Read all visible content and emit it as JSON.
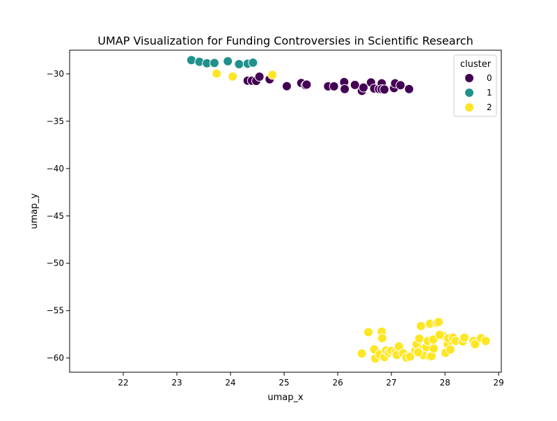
{
  "chart_data": {
    "type": "scatter",
    "title": "UMAP Visualization for Funding Controversies in Scientific Research",
    "xlabel": "umap_x",
    "ylabel": "umap_y",
    "xlim": [
      21.0,
      29.05
    ],
    "ylim": [
      -61.5,
      -27.5
    ],
    "x_ticks": [
      22,
      23,
      24,
      25,
      26,
      27,
      28,
      29
    ],
    "x_tick_labels": [
      "22",
      "23",
      "24",
      "25",
      "26",
      "27",
      "28",
      "29"
    ],
    "y_ticks": [
      -60,
      -55,
      -50,
      -45,
      -40,
      -35,
      -30
    ],
    "y_tick_labels": [
      "−60",
      "−55",
      "−50",
      "−45",
      "−40",
      "−35",
      "−30"
    ],
    "grid": false,
    "legend": {
      "title": "cluster",
      "placement": "top-right",
      "entries": [
        "0",
        "1",
        "2"
      ]
    },
    "series": [
      {
        "name": "0",
        "color": "#440154",
        "points": [
          [
            24.32,
            -30.72
          ],
          [
            24.4,
            -30.72
          ],
          [
            24.48,
            -30.75
          ],
          [
            24.54,
            -30.3
          ],
          [
            24.73,
            -30.57
          ],
          [
            25.05,
            -31.3
          ],
          [
            25.32,
            -30.97
          ],
          [
            25.4,
            -31.21
          ],
          [
            25.42,
            -31.13
          ],
          [
            25.82,
            -31.32
          ],
          [
            25.93,
            -31.32
          ],
          [
            26.12,
            -30.87
          ],
          [
            26.13,
            -31.6
          ],
          [
            26.32,
            -31.17
          ],
          [
            26.45,
            -31.8
          ],
          [
            26.48,
            -31.45
          ],
          [
            26.62,
            -30.9
          ],
          [
            26.68,
            -31.55
          ],
          [
            26.77,
            -31.6
          ],
          [
            26.82,
            -31.0
          ],
          [
            26.82,
            -31.62
          ],
          [
            26.87,
            -31.65
          ],
          [
            27.05,
            -31.5
          ],
          [
            27.07,
            -31.0
          ],
          [
            27.17,
            -31.2
          ],
          [
            27.33,
            -31.6
          ]
        ]
      },
      {
        "name": "1",
        "color": "#21918c",
        "points": [
          [
            23.27,
            -28.55
          ],
          [
            23.42,
            -28.72
          ],
          [
            23.56,
            -28.88
          ],
          [
            23.7,
            -28.85
          ],
          [
            23.95,
            -28.67
          ],
          [
            24.16,
            -28.97
          ],
          [
            24.32,
            -28.93
          ],
          [
            24.42,
            -28.82
          ]
        ]
      },
      {
        "name": "2",
        "color": "#fde725",
        "points": [
          [
            23.74,
            -29.97
          ],
          [
            24.04,
            -30.28
          ],
          [
            24.78,
            -30.1
          ],
          [
            26.45,
            -59.52
          ],
          [
            26.57,
            -57.28
          ],
          [
            26.68,
            -59.08
          ],
          [
            26.7,
            -60.05
          ],
          [
            26.78,
            -59.62
          ],
          [
            26.82,
            -57.22
          ],
          [
            26.83,
            -57.9
          ],
          [
            26.87,
            -59.9
          ],
          [
            26.9,
            -59.2
          ],
          [
            26.95,
            -59.45
          ],
          [
            27.0,
            -59.25
          ],
          [
            27.08,
            -59.4
          ],
          [
            27.1,
            -59.68
          ],
          [
            27.14,
            -58.78
          ],
          [
            27.22,
            -59.5
          ],
          [
            27.28,
            -59.95
          ],
          [
            27.35,
            -59.85
          ],
          [
            27.45,
            -59.2
          ],
          [
            27.47,
            -58.55
          ],
          [
            27.52,
            -57.95
          ],
          [
            27.55,
            -56.62
          ],
          [
            27.58,
            -59.05
          ],
          [
            27.6,
            -59.7
          ],
          [
            27.65,
            -58.85
          ],
          [
            27.68,
            -58.2
          ],
          [
            27.72,
            -56.38
          ],
          [
            27.72,
            -59.85
          ],
          [
            27.75,
            -59.8
          ],
          [
            27.78,
            -58.05
          ],
          [
            27.79,
            -59.0
          ],
          [
            27.84,
            -56.3
          ],
          [
            27.88,
            -56.2
          ],
          [
            27.96,
            -57.65
          ],
          [
            28.01,
            -59.45
          ],
          [
            28.05,
            -58.55
          ],
          [
            28.06,
            -57.92
          ],
          [
            28.1,
            -59.1
          ],
          [
            28.15,
            -57.85
          ],
          [
            28.2,
            -58.2
          ],
          [
            28.33,
            -58.25
          ],
          [
            28.36,
            -57.85
          ],
          [
            28.53,
            -58.2
          ],
          [
            28.56,
            -58.55
          ],
          [
            28.67,
            -57.9
          ],
          [
            28.76,
            -58.2
          ],
          [
            27.5,
            -59.4
          ],
          [
            27.9,
            -57.55
          ]
        ]
      }
    ]
  }
}
